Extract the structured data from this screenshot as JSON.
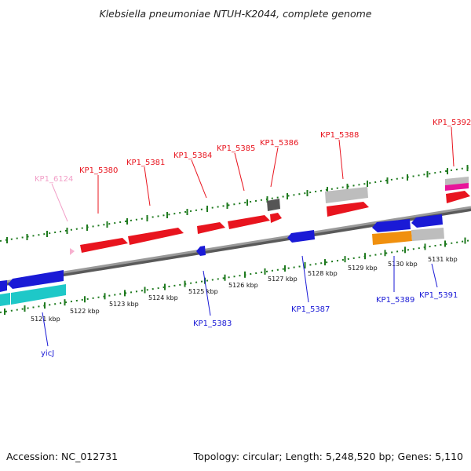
{
  "title": "Klebsiella pneumoniae NTUH-K2044, complete genome",
  "footer": {
    "accession": "Accession: NC_012731",
    "summary": "Topology: circular; Length: 5,248,520 bp; Genes: 5,110"
  },
  "colors": {
    "forward_label": "#e8141e",
    "reverse_label": "#1a1ad6",
    "faded_label": "#f2a0c8",
    "forward_gene": "#e8141e",
    "reverse_gene": "#1a1ad6",
    "tick": "#1e7a1e",
    "backbone": "#8a8a8a"
  },
  "ticks": [
    {
      "label": "5121 kbp"
    },
    {
      "label": "5122 kbp"
    },
    {
      "label": "5123 kbp"
    },
    {
      "label": "5124 kbp"
    },
    {
      "label": "5125 kbp"
    },
    {
      "label": "5126 kbp"
    },
    {
      "label": "5127 kbp"
    },
    {
      "label": "5128 kbp"
    },
    {
      "label": "5129 kbp"
    },
    {
      "label": "5130 kbp"
    },
    {
      "label": "5131 kbp"
    }
  ],
  "labels": [
    {
      "text": "KP1_6124",
      "strand": "faded"
    },
    {
      "text": "KP1_5380",
      "strand": "forward"
    },
    {
      "text": "KP1_5381",
      "strand": "forward"
    },
    {
      "text": "KP1_5384",
      "strand": "forward"
    },
    {
      "text": "KP1_5385",
      "strand": "forward"
    },
    {
      "text": "KP1_5386",
      "strand": "forward"
    },
    {
      "text": "KP1_5388",
      "strand": "forward"
    },
    {
      "text": "KP1_5392",
      "strand": "forward"
    },
    {
      "text": "yicJ",
      "strand": "reverse"
    },
    {
      "text": "KP1_5383",
      "strand": "reverse"
    },
    {
      "text": "KP1_5387",
      "strand": "reverse"
    },
    {
      "text": "KP1_5389",
      "strand": "reverse"
    },
    {
      "text": "KP1_5391",
      "strand": "reverse"
    }
  ]
}
